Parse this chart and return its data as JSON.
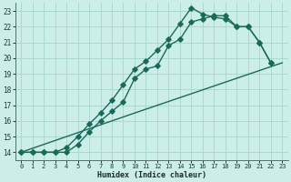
{
  "xlabel": "Humidex (Indice chaleur)",
  "bg_color": "#cceee8",
  "grid_color": "#aad8d0",
  "line_color": "#1a6a5a",
  "xlim": [
    -0.5,
    23.5
  ],
  "ylim": [
    13.5,
    23.5
  ],
  "xticks": [
    0,
    1,
    2,
    3,
    4,
    5,
    6,
    7,
    8,
    9,
    10,
    11,
    12,
    13,
    14,
    15,
    16,
    17,
    18,
    19,
    20,
    21,
    22,
    23
  ],
  "yticks": [
    14,
    15,
    16,
    17,
    18,
    19,
    20,
    21,
    22,
    23
  ],
  "line1_x": [
    0,
    1,
    2,
    3,
    4,
    5,
    6,
    7,
    8,
    9,
    10,
    11,
    12,
    13,
    14,
    15,
    16,
    17,
    18,
    19,
    20,
    21,
    22
  ],
  "line1_y": [
    14,
    14,
    14,
    14,
    14.3,
    15.0,
    15.8,
    16.5,
    17.3,
    18.3,
    19.3,
    19.8,
    20.5,
    21.2,
    22.2,
    23.2,
    22.8,
    22.6,
    22.5,
    22.0,
    22.0,
    21.0,
    19.7
  ],
  "line2_x": [
    0,
    1,
    2,
    3,
    4,
    5,
    6,
    7,
    8,
    9,
    10,
    11,
    12,
    13,
    14,
    15,
    16,
    17,
    18,
    19,
    20,
    21,
    22
  ],
  "line2_y": [
    14,
    14,
    14,
    14,
    14.0,
    14.5,
    15.3,
    16.0,
    16.6,
    17.2,
    18.7,
    19.3,
    19.5,
    20.8,
    21.2,
    22.3,
    22.5,
    22.7,
    22.7,
    22.0,
    22.0,
    21.0,
    19.7
  ],
  "line3_x": [
    0,
    10,
    23
  ],
  "line3_y": [
    14,
    16.5,
    19.7
  ]
}
